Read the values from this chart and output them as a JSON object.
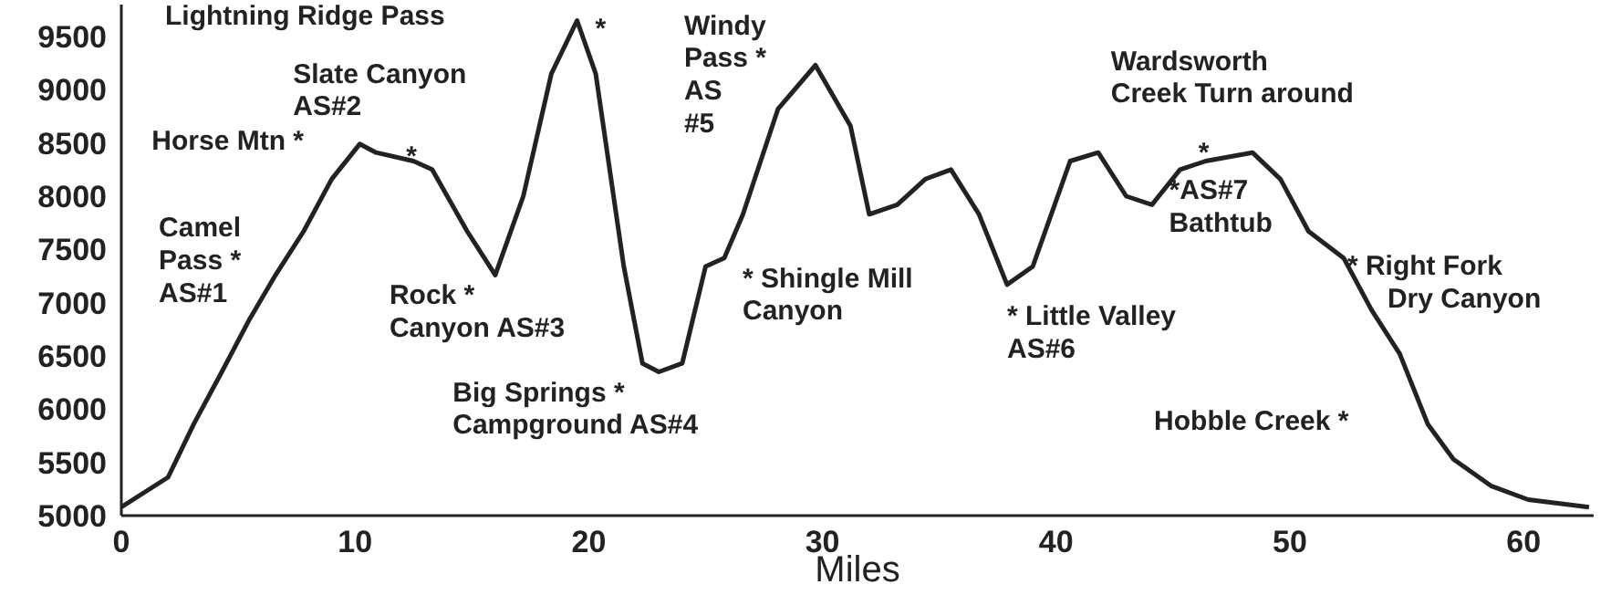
{
  "chart_data": {
    "type": "line",
    "xlabel": "Miles",
    "x": [
      0,
      2,
      3.1,
      4.3,
      5.5,
      6.6,
      7.8,
      9,
      10.2,
      10.9,
      12.5,
      13.3,
      14.8,
      16,
      17.2,
      18.4,
      19.5,
      20.3,
      21.5,
      22.3,
      23,
      24,
      25,
      25.8,
      26.6,
      28.1,
      29.7,
      31.2,
      32,
      33.2,
      34.4,
      35.5,
      36.7,
      37.9,
      39,
      40.6,
      41.8,
      43,
      44.1,
      45.3,
      46.4,
      48.4,
      49.6,
      50.8,
      52.3,
      53.5,
      54.7,
      55.9,
      57,
      58.6,
      60.2,
      62.8
    ],
    "series": [
      {
        "color": "#222222",
        "values": [
          5080,
          5360,
          5860,
          6350,
          6850,
          7260,
          7670,
          8160,
          8490,
          8410,
          8330,
          8250,
          7670,
          7260,
          8000,
          9150,
          9650,
          9150,
          7340,
          6430,
          6350,
          6430,
          7340,
          7420,
          7830,
          8820,
          9230,
          8660,
          7830,
          7920,
          8160,
          8250,
          7830,
          7170,
          7340,
          8330,
          8410,
          8000,
          7920,
          8250,
          8330,
          8410,
          8160,
          7670,
          7420,
          6930,
          6520,
          5860,
          5530,
          5280,
          5150,
          5080
        ]
      }
    ],
    "xlim": [
      0,
      63
    ],
    "ylim": [
      5000,
      9800
    ],
    "xticks": [
      0,
      10,
      20,
      30,
      40,
      50,
      60
    ],
    "yticks": [
      5000,
      5500,
      6000,
      6500,
      7000,
      7500,
      8000,
      8500,
      9000,
      9500
    ],
    "grid": false,
    "marker": "none",
    "line_style": "solid",
    "annotations": [
      "Lightning Ridge Pass",
      {
        "text": "*",
        "x": 19.5,
        "y": 9650
      },
      {
        "text": "Slate Canyon\nAS#2",
        "x": 12.5,
        "y": 8330
      },
      {
        "text": "*",
        "x": 12.5,
        "y": 8330
      },
      {
        "text": "Horse Mtn *",
        "x": 10.2,
        "y": 8490
      },
      {
        "text": "Camel\nPass  *\nAS#1",
        "x": 6.6,
        "y": 7260
      },
      {
        "text": "Rock  *\nCanyon AS#3",
        "x": 16,
        "y": 7260
      },
      {
        "text": "Big Springs *\nCampground AS#4",
        "x": 23,
        "y": 6350
      },
      {
        "text": "Windy\nPass *\nAS\n#5",
        "x": 29.7,
        "y": 9230
      },
      {
        "text": "* Shingle Mill\nCanyon",
        "x": 25.8,
        "y": 7420
      },
      {
        "text": "* Little Valley\nAS#6",
        "x": 37.9,
        "y": 7170
      },
      {
        "text": "Wardsworth\nCreek Turn around",
        "x": 46.4,
        "y": 8330
      },
      {
        "text": "*",
        "x": 46.4,
        "y": 8330
      },
      {
        "text": "*AS#7\nBathtub",
        "x": 45.3,
        "y": 8250
      },
      {
        "text": "* Right Fork",
        "x": 52.3,
        "y": 7420
      },
      {
        "text": "Dry Canyon",
        "x": 52.3,
        "y": 7420
      },
      {
        "text": "Hobble Creek *",
        "x": 55.9,
        "y": 5860
      }
    ]
  }
}
